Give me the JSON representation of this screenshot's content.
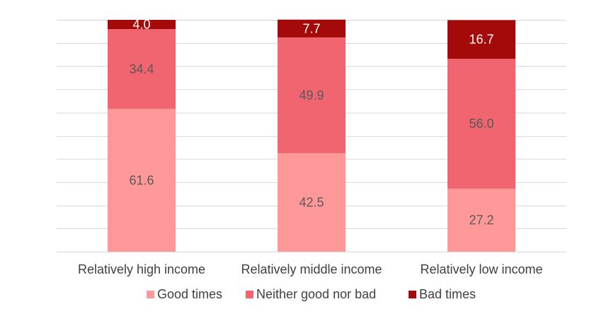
{
  "chart_data": {
    "type": "bar",
    "stacked": true,
    "orientation": "vertical",
    "categories": [
      "Relatively high income",
      "Relatively middle income",
      "Relatively low income"
    ],
    "series": [
      {
        "name": "Good times",
        "values": [
          61.6,
          42.5,
          27.2
        ],
        "labels": [
          "61.6",
          "42.5",
          "27.2"
        ],
        "color": "#ff9999",
        "label_color": "#595959"
      },
      {
        "name": "Neither good nor bad",
        "values": [
          34.4,
          49.9,
          56.0
        ],
        "labels": [
          "34.4",
          "49.9",
          "56.0"
        ],
        "color": "#f06570",
        "label_color": "#595959"
      },
      {
        "name": "Bad times",
        "values": [
          4.0,
          7.7,
          16.7
        ],
        "labels": [
          "4.0",
          "7.7",
          "16.7"
        ],
        "color": "#a50a0a",
        "label_color": "#ffffff"
      }
    ],
    "ylim": [
      0,
      100
    ],
    "grid": true,
    "gridline_step": 10,
    "gridline_color": "#d9d9d9",
    "legend_position": "bottom",
    "xlabel": "",
    "ylabel": ""
  }
}
